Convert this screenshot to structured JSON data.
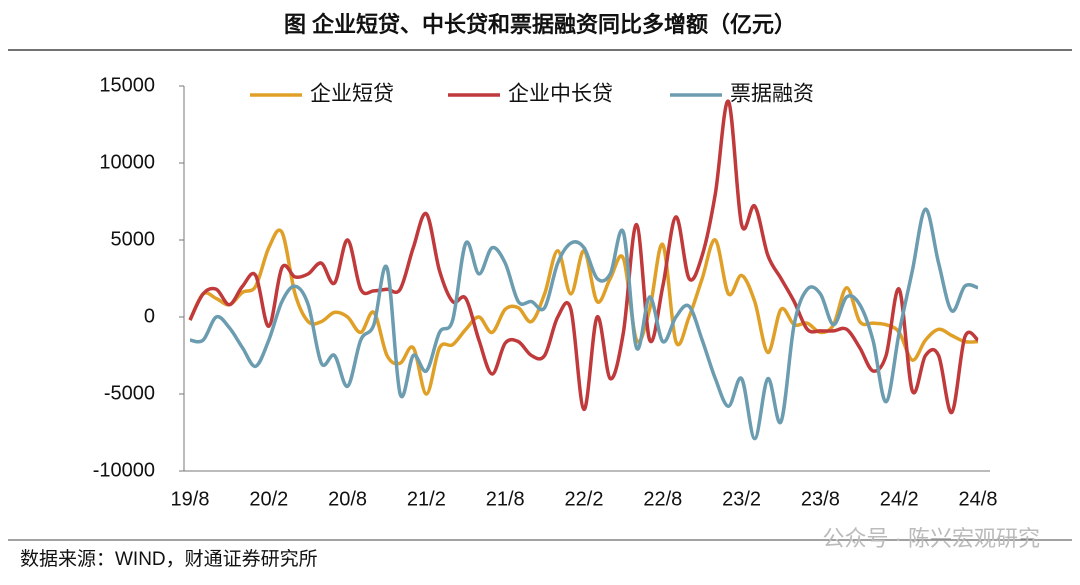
{
  "chart_data": {
    "type": "line",
    "title": "图  企业短贷、中长贷和票据融资同比多增额（亿元）",
    "source": "数据来源：WIND，财通证券研究所",
    "watermark": "公众号 · 陈兴宏观研究",
    "categories": [
      "19/8",
      null,
      null,
      null,
      null,
      null,
      "20/2",
      null,
      null,
      null,
      null,
      null,
      "20/8",
      null,
      null,
      null,
      null,
      null,
      "21/2",
      null,
      null,
      null,
      null,
      null,
      "21/8",
      null,
      null,
      null,
      null,
      null,
      "22/2",
      null,
      null,
      null,
      null,
      null,
      "22/8",
      null,
      null,
      null,
      null,
      null,
      "23/2",
      null,
      null,
      null,
      null,
      null,
      "23/8",
      null,
      null,
      null,
      null,
      null,
      "24/2",
      null,
      null,
      null,
      null,
      null,
      "24/8"
    ],
    "series": [
      {
        "name": "企业短贷",
        "color": "#e0a028",
        "values": [
          -200,
          1500,
          1200,
          800,
          1600,
          2000,
          4500,
          5500,
          1500,
          -300,
          -300,
          300,
          0,
          -1000,
          300,
          -2500,
          -3000,
          -2000,
          -5000,
          -2000,
          -1800,
          -800,
          0,
          -1000,
          500,
          600,
          -300,
          1500,
          4300,
          1500,
          4300,
          1000,
          2500,
          3800,
          -1500,
          500,
          4700,
          -1600,
          0,
          2500,
          5000,
          1500,
          2700,
          1000,
          -2300,
          500,
          -500,
          -400,
          -1000,
          -500,
          1900,
          -300,
          -400,
          -500,
          -1000,
          -2800,
          -1500,
          -800,
          -1200,
          -1600,
          -1600
        ]
      },
      {
        "name": "企业中长贷",
        "color": "#c0393b",
        "values": [
          -200,
          1500,
          1800,
          800,
          2000,
          2700,
          -600,
          3200,
          2600,
          2800,
          3500,
          2200,
          5000,
          1800,
          1700,
          1800,
          1800,
          4500,
          6700,
          3000,
          1000,
          1200,
          -1500,
          -3700,
          -1700,
          -1600,
          -2500,
          -2500,
          0,
          500,
          -6000,
          0,
          -4000,
          -1000,
          6000,
          -1500,
          2000,
          6500,
          2500,
          4000,
          8000,
          14000,
          6000,
          7200,
          4000,
          2500,
          1000,
          -800,
          -900,
          -900,
          -800,
          -2000,
          -3500,
          -2500,
          1800,
          -4800,
          -2500,
          -2500,
          -6200,
          -1300,
          -1500
        ]
      },
      {
        "name": "票据融资",
        "color": "#6b9cb0",
        "values": [
          -1500,
          -1500,
          0,
          -700,
          -2000,
          -3200,
          -1500,
          1000,
          2000,
          800,
          -3000,
          -2500,
          -4500,
          -1500,
          -500,
          3200,
          -5000,
          -2500,
          -3500,
          -1000,
          -200,
          4800,
          2800,
          4500,
          3500,
          1000,
          1000,
          600,
          3500,
          4800,
          4500,
          2500,
          2800,
          5500,
          -2000,
          1300,
          -1600,
          0,
          700,
          -1500,
          -4000,
          -5800,
          -4000,
          -7900,
          -4000,
          -6800,
          -500,
          1800,
          1500,
          -500,
          1300,
          800,
          -1500,
          -5500,
          -1000,
          3000,
          7000,
          3500,
          400,
          2000,
          1900
        ]
      }
    ],
    "ylim": [
      -10000,
      15000
    ],
    "yticks": [
      -10000,
      -5000,
      0,
      5000,
      10000,
      15000
    ]
  }
}
